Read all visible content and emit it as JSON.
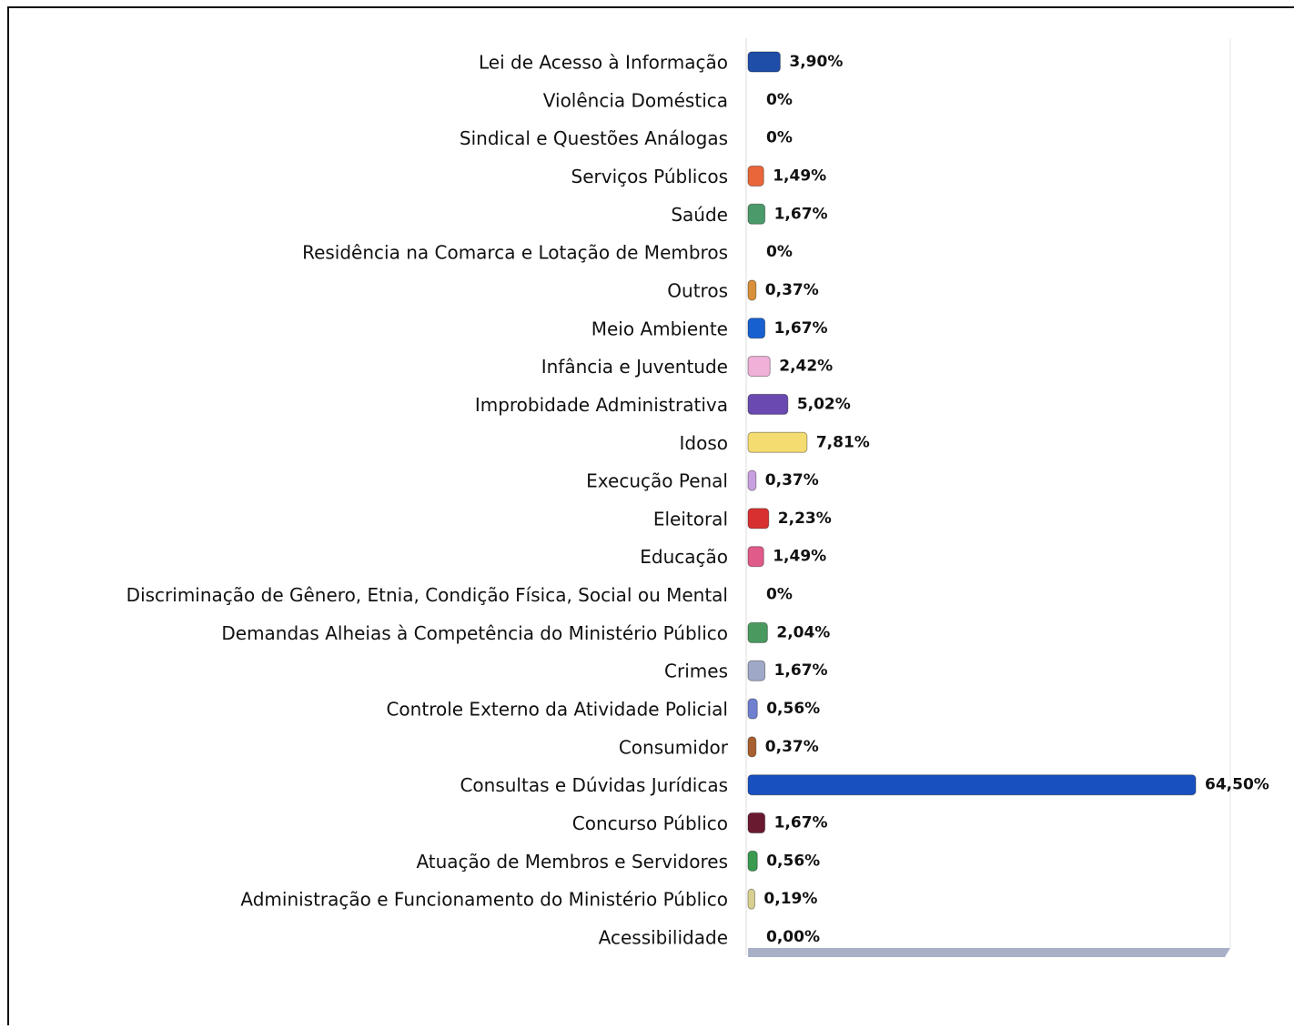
{
  "chart_data": {
    "type": "bar",
    "orientation": "horizontal",
    "categories": [
      "Lei de Acesso à Informação",
      "Violência Doméstica",
      "Sindical e Questões Análogas",
      "Serviços Públicos",
      "Saúde",
      "Residência na Comarca e Lotação de Membros",
      "Outros",
      "Meio Ambiente",
      "Infância e Juventude",
      "Improbidade Administrativa",
      "Idoso",
      "Execução Penal",
      "Eleitoral",
      "Educação",
      "Discriminação de Gênero, Etnia, Condição Física, Social ou Mental",
      "Demandas Alheias à Competência do Ministério Público",
      "Crimes",
      "Controle Externo da Atividade Policial",
      "Consumidor",
      "Consultas e Dúvidas Jurídicas",
      "Concurso Público",
      "Atuação de Membros e Servidores",
      "Administração e Funcionamento do Ministério Público",
      "Acessibilidade"
    ],
    "values": [
      3.9,
      0,
      0,
      1.49,
      1.67,
      0,
      0.37,
      1.67,
      2.42,
      5.02,
      7.81,
      0.37,
      2.23,
      1.49,
      0,
      2.04,
      1.67,
      0.56,
      0.37,
      64.5,
      1.67,
      0.56,
      0.19,
      0
    ],
    "value_labels": [
      "3,90%",
      "0%",
      "0%",
      "1,49%",
      "1,67%",
      "0%",
      "0,37%",
      "1,67%",
      "2,42%",
      "5,02%",
      "7,81%",
      "0,37%",
      "2,23%",
      "1,49%",
      "0%",
      "2,04%",
      "1,67%",
      "0,56%",
      "0,37%",
      "64,50%",
      "1,67%",
      "0,56%",
      "0,19%",
      "0,00%"
    ],
    "colors": [
      "#1f4ea8",
      "#999999",
      "#999999",
      "#e8663a",
      "#4a9a6a",
      "#999999",
      "#d8903a",
      "#1660d0",
      "#f0b0d8",
      "#6a4ab0",
      "#f5dc70",
      "#c8a0e0",
      "#d83030",
      "#e05a8a",
      "#999999",
      "#4a9a60",
      "#a0a8c8",
      "#7080d0",
      "#a86030",
      "#1850c0",
      "#6a1a30",
      "#3a9a50",
      "#d8d090",
      "#999999"
    ]
  }
}
